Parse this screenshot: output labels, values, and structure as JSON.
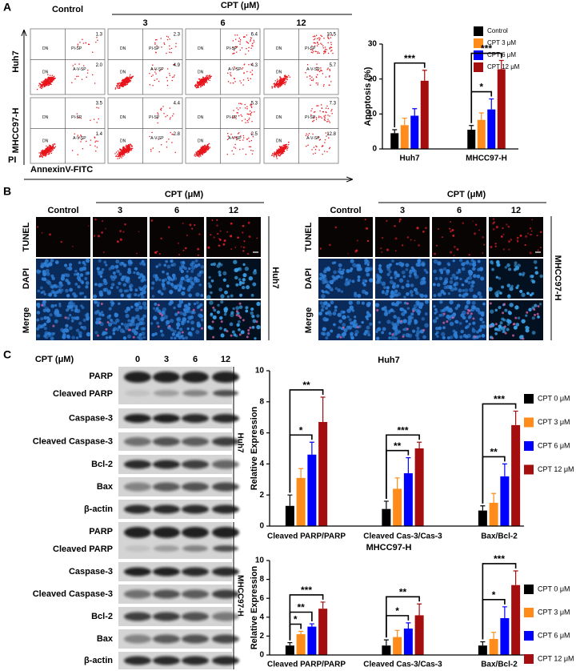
{
  "panel_labels": [
    "A",
    "B",
    "C"
  ],
  "panel_a": {
    "column_header": "Control",
    "group_header": "CPT (μM)",
    "doses": [
      "3",
      "6",
      "12"
    ],
    "rows": [
      "Huh7",
      "MHCC97-H"
    ],
    "y_axis": "PI",
    "x_axis": "AnnexinV-FITC",
    "quadrant_labels": [
      "DN",
      "PI-SP",
      "DN",
      "A-V-SP"
    ],
    "percentages": [
      [
        [
          "1.3",
          "2.0"
        ],
        [
          "2.3",
          "4.9"
        ],
        [
          "6.4",
          "4.3"
        ],
        [
          "10.5",
          "5.7"
        ]
      ],
      [
        [
          "3.5",
          "1.4"
        ],
        [
          "4.4",
          "2.8"
        ],
        [
          "5.3",
          "2.5"
        ],
        [
          "7.3",
          "12.8"
        ]
      ]
    ]
  },
  "panel_b": {
    "blocks": [
      {
        "cell_line": "Huh7",
        "column_header": "Control",
        "group_header": "CPT (μM)",
        "doses": [
          "3",
          "6",
          "12"
        ],
        "rows": [
          "TUNEL",
          "DAPI",
          "Merge"
        ]
      },
      {
        "cell_line": "MHCC97-H",
        "column_header": "Control",
        "group_header": "CPT (μM)",
        "doses": [
          "3",
          "6",
          "12"
        ],
        "rows": [
          "TUNEL",
          "DAPI",
          "Merge"
        ]
      }
    ]
  },
  "panel_c": {
    "header": "CPT (μM)",
    "lanes": [
      "0",
      "3",
      "6",
      "12"
    ],
    "blots": [
      {
        "cell_line": "Huh7",
        "proteins": [
          "PARP",
          "Cleaved PARP",
          "Caspase-3",
          "Cleaved Caspase-3",
          "Bcl-2",
          "Bax",
          "β-actin"
        ]
      },
      {
        "cell_line": "MHCC97-H",
        "proteins": [
          "PARP",
          "Cleaved PARP",
          "Caspase-3",
          "Cleaved Caspase-3",
          "Bcl-2",
          "Bax",
          "β-actin"
        ]
      }
    ]
  },
  "chart_data": [
    {
      "type": "bar",
      "y_label": "Apoptosis (%)",
      "categories": [
        "Huh7",
        "MHCC97-H"
      ],
      "series": [
        {
          "name": "Control",
          "color": "#000000",
          "values": [
            4.5,
            5.5
          ],
          "errors": [
            1.0,
            1.2
          ]
        },
        {
          "name": "CPT 3 μM",
          "color": "#ff8c1a",
          "values": [
            6.8,
            8.3
          ],
          "errors": [
            2.0,
            2.0
          ]
        },
        {
          "name": "CPT 6 μM",
          "color": "#0000ff",
          "values": [
            9.5,
            11.3
          ],
          "errors": [
            2.0,
            3.0
          ]
        },
        {
          "name": "CPT 12 μM",
          "color": "#a50e0e",
          "values": [
            19.5,
            22.8
          ],
          "errors": [
            3.0,
            2.5
          ]
        }
      ],
      "ylim": [
        0,
        30
      ],
      "yticks": [
        0,
        10,
        20,
        30
      ],
      "legend": "upper right",
      "significance": [
        {
          "category": 0,
          "between": [
            0,
            3
          ],
          "label": "***"
        },
        {
          "category": 1,
          "between": [
            0,
            2
          ],
          "label": "*"
        },
        {
          "category": 1,
          "between": [
            0,
            3
          ],
          "label": "***"
        }
      ]
    },
    {
      "type": "bar",
      "title": "Huh7",
      "y_label": "Relative Expression",
      "categories": [
        "Cleaved PARP/PARP",
        "Cleaved Cas-3/Cas-3",
        "Bax/Bcl-2"
      ],
      "series": [
        {
          "name": "CPT 0 μM",
          "color": "#000000",
          "values": [
            1.3,
            1.1,
            1.0
          ],
          "errors": [
            0.7,
            0.5,
            0.3
          ]
        },
        {
          "name": "CPT 3 μM",
          "color": "#ff8c1a",
          "values": [
            3.1,
            2.4,
            1.5
          ],
          "errors": [
            0.6,
            0.7,
            0.6
          ]
        },
        {
          "name": "CPT 6 μM",
          "color": "#0000ff",
          "values": [
            4.6,
            3.4,
            3.2
          ],
          "errors": [
            0.8,
            1.0,
            0.8
          ]
        },
        {
          "name": "CPT 12 μM",
          "color": "#a50e0e",
          "values": [
            6.7,
            5.0,
            6.5
          ],
          "errors": [
            1.6,
            0.4,
            0.9
          ]
        }
      ],
      "ylim": [
        0,
        10
      ],
      "yticks": [
        0,
        2,
        4,
        6,
        8,
        10
      ],
      "legend": "right",
      "significance": [
        {
          "category": 0,
          "between": [
            0,
            2
          ],
          "label": "*"
        },
        {
          "category": 0,
          "between": [
            0,
            3
          ],
          "label": "**"
        },
        {
          "category": 1,
          "between": [
            0,
            2
          ],
          "label": "**"
        },
        {
          "category": 1,
          "between": [
            0,
            3
          ],
          "label": "***"
        },
        {
          "category": 2,
          "between": [
            0,
            2
          ],
          "label": "**"
        },
        {
          "category": 2,
          "between": [
            0,
            3
          ],
          "label": "***"
        }
      ]
    },
    {
      "type": "bar",
      "title": "MHCC97-H",
      "y_label": "Relative Expression",
      "categories": [
        "Cleaved PARP/PARP",
        "Cleaved Cas-3/Cas-3",
        "Bax/Bcl-2"
      ],
      "series": [
        {
          "name": "CPT 0 μM",
          "color": "#000000",
          "values": [
            1.0,
            1.0,
            1.0
          ],
          "errors": [
            0.3,
            0.6,
            0.4
          ]
        },
        {
          "name": "CPT 3 μM",
          "color": "#ff8c1a",
          "values": [
            2.2,
            1.9,
            1.7
          ],
          "errors": [
            0.3,
            0.7,
            0.7
          ]
        },
        {
          "name": "CPT 6 μM",
          "color": "#0000ff",
          "values": [
            3.0,
            2.8,
            3.9
          ],
          "errors": [
            0.3,
            0.6,
            1.2
          ]
        },
        {
          "name": "CPT 12 μM",
          "color": "#a50e0e",
          "values": [
            4.9,
            4.2,
            7.4
          ],
          "errors": [
            0.7,
            1.2,
            1.5
          ]
        }
      ],
      "ylim": [
        0,
        10
      ],
      "yticks": [
        0,
        2,
        4,
        6,
        8,
        10
      ],
      "legend": "right",
      "significance": [
        {
          "category": 0,
          "between": [
            0,
            1
          ],
          "label": "*"
        },
        {
          "category": 0,
          "between": [
            0,
            2
          ],
          "label": "**"
        },
        {
          "category": 0,
          "between": [
            0,
            3
          ],
          "label": "***"
        },
        {
          "category": 1,
          "between": [
            0,
            2
          ],
          "label": "*"
        },
        {
          "category": 1,
          "between": [
            0,
            3
          ],
          "label": "**"
        },
        {
          "category": 2,
          "between": [
            0,
            2
          ],
          "label": "*"
        },
        {
          "category": 2,
          "between": [
            0,
            3
          ],
          "label": "***"
        }
      ]
    }
  ]
}
